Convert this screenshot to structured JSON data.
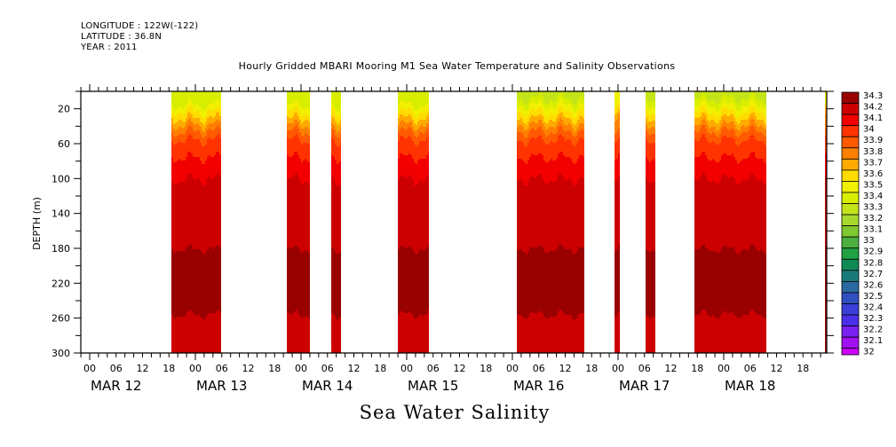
{
  "header": {
    "longitude": "LONGITUDE : 122W(-122)",
    "latitude": "LATITUDE : 36.8N",
    "year": "YEAR : 2011"
  },
  "chart_data": {
    "type": "heatmap",
    "title": "Hourly Gridded MBARI Mooring M1 Sea Water Temperature and Salinity Observations",
    "variable_title": "Sea Water Salinity",
    "ylabel": "DEPTH (m)",
    "xlabel": "",
    "y_reversed": true,
    "ylim": [
      0,
      300
    ],
    "y_ticks": [
      20,
      60,
      100,
      140,
      180,
      220,
      260,
      300
    ],
    "x_range_hours_from_mar12_00": [
      -2,
      167.4
    ],
    "x_hour_tick_labels": [
      "00",
      "06",
      "12",
      "18"
    ],
    "x_day_labels": [
      "MAR 12",
      "MAR 13",
      "MAR 14",
      "MAR 15",
      "MAR 16",
      "MAR 17",
      "MAR 18"
    ],
    "colorbar": {
      "levels": [
        "34.3",
        "34.2",
        "34.1",
        "34",
        "33.9",
        "33.8",
        "33.7",
        "33.6",
        "33.5",
        "33.4",
        "33.3",
        "33.2",
        "33.1",
        "33",
        "32.9",
        "32.8",
        "32.7",
        "32.6",
        "32.5",
        "32.4",
        "32.3",
        "32.2",
        "32.1",
        "32"
      ],
      "colors": [
        "#990000",
        "#cc0000",
        "#f20000",
        "#ff3300",
        "#ff5a00",
        "#ff8000",
        "#ffaa00",
        "#ffdd00",
        "#f0f000",
        "#d8ee00",
        "#c4e41a",
        "#a8d82c",
        "#80c830",
        "#4cb040",
        "#22a044",
        "#0f8a55",
        "#1a7a7a",
        "#2a6aa0",
        "#3050c0",
        "#3a40d8",
        "#4a30e8",
        "#7a20f0",
        "#a010f0",
        "#cc00ff"
      ]
    },
    "data_segments": [
      {
        "start_hour": 18.6,
        "end_hour": 29.9,
        "surface_salinity": 33.3,
        "profile_depths": [
          0,
          15,
          30,
          45,
          55,
          75,
          100,
          135,
          225,
          285,
          300
        ],
        "profile_values": [
          33.3,
          33.4,
          33.6,
          33.8,
          33.9,
          34.0,
          34.1,
          34.15,
          34.25,
          34.15,
          34.15
        ]
      },
      {
        "start_hour": 44.8,
        "end_hour": 50.0,
        "surface_salinity": 33.3,
        "profile_depths": [
          0,
          15,
          30,
          45,
          55,
          75,
          100,
          135,
          225,
          285,
          300
        ],
        "profile_values": [
          33.3,
          33.4,
          33.6,
          33.8,
          33.9,
          34.0,
          34.1,
          34.15,
          34.25,
          34.15,
          34.15
        ]
      },
      {
        "start_hour": 54.9,
        "end_hour": 57.0,
        "surface_salinity": 33.3,
        "profile_depths": [
          0,
          15,
          30,
          45,
          55,
          75,
          100,
          135,
          225,
          285,
          300
        ],
        "profile_values": [
          33.3,
          33.4,
          33.6,
          33.8,
          33.9,
          34.0,
          34.1,
          34.15,
          34.25,
          34.15,
          34.15
        ]
      },
      {
        "start_hour": 70.0,
        "end_hour": 77.0,
        "surface_salinity": 33.3,
        "profile_depths": [
          0,
          15,
          30,
          45,
          55,
          75,
          100,
          135,
          225,
          285,
          300
        ],
        "profile_values": [
          33.3,
          33.4,
          33.6,
          33.8,
          33.9,
          34.0,
          34.1,
          34.15,
          34.25,
          34.15,
          34.15
        ]
      },
      {
        "start_hour": 97.0,
        "end_hour": 112.4,
        "surface_salinity": 33.2,
        "profile_depths": [
          0,
          15,
          30,
          45,
          55,
          75,
          100,
          135,
          225,
          285,
          300
        ],
        "profile_values": [
          33.2,
          33.4,
          33.6,
          33.8,
          33.9,
          34.0,
          34.1,
          34.15,
          34.25,
          34.15,
          34.15
        ]
      },
      {
        "start_hour": 119.2,
        "end_hour": 120.4,
        "surface_salinity": 33.4,
        "profile_depths": [
          0,
          15,
          30,
          45,
          55,
          75,
          100,
          135,
          225,
          285,
          300
        ],
        "profile_values": [
          33.4,
          33.5,
          33.7,
          33.8,
          33.9,
          34.0,
          34.1,
          34.15,
          34.25,
          34.15,
          34.15
        ]
      },
      {
        "start_hour": 126.3,
        "end_hour": 128.5,
        "surface_salinity": 33.2,
        "profile_depths": [
          0,
          15,
          30,
          45,
          55,
          75,
          100,
          135,
          225,
          285,
          300
        ],
        "profile_values": [
          33.2,
          33.4,
          33.6,
          33.8,
          33.9,
          34.0,
          34.1,
          34.15,
          34.25,
          34.15,
          34.15
        ]
      },
      {
        "start_hour": 137.4,
        "end_hour": 153.7,
        "surface_salinity": 33.2,
        "profile_depths": [
          0,
          15,
          30,
          45,
          55,
          75,
          100,
          135,
          225,
          285,
          300
        ],
        "profile_values": [
          33.2,
          33.4,
          33.6,
          33.8,
          33.9,
          34.0,
          34.1,
          34.15,
          34.25,
          34.15,
          34.15
        ]
      },
      {
        "start_hour": 167.0,
        "end_hour": 167.4,
        "surface_salinity": 33.4,
        "profile_depths": [
          0,
          15,
          30,
          45,
          55,
          75,
          100,
          135,
          225,
          285,
          300
        ],
        "profile_values": [
          33.4,
          33.5,
          33.7,
          33.8,
          33.9,
          34.0,
          34.1,
          34.15,
          34.25,
          34.25,
          34.25
        ]
      }
    ]
  }
}
